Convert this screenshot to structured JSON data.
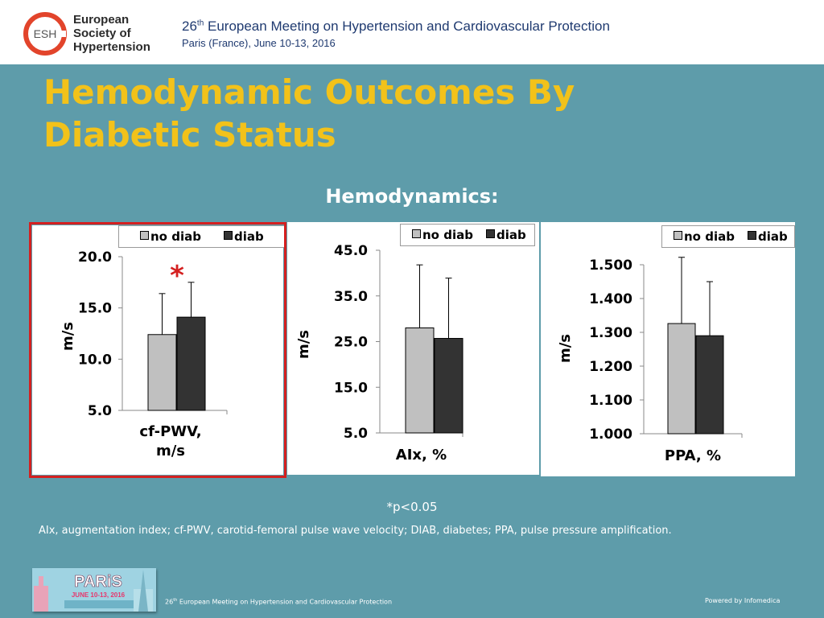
{
  "header": {
    "logo_abbr": "ESH",
    "logo_lines": [
      "European",
      "Society of",
      "Hypertension"
    ],
    "conference_ordinal": "26",
    "conference_ordinal_suffix": "th",
    "conference_name": " European Meeting on Hypertension and Cardiovascular Protection",
    "location_date": "Paris (France), June 10-13, 2016"
  },
  "slide": {
    "title_line1": "Hemodynamic Outcomes By",
    "title_line2": "Diabetic Status",
    "subtitle": "Hemodynamics:",
    "footnote": "*p<0.05",
    "abbreviations": "AIx, augmentation index; cf-PWV, carotid-femoral pulse wave velocity; DIAB, diabetes; PPA, pulse pressure amplification."
  },
  "footer": {
    "image_text_main": "PARiS",
    "image_text_date": "JUNE 10-13, 2016",
    "conf_ordinal": "26",
    "conf_suffix": "th",
    "conf_name": " European Meeting on Hypertension and Cardiovascular Protection",
    "powered_by": "Powered by Infomedica"
  },
  "colors": {
    "background": "#5e9caa",
    "title": "#f2c21a",
    "no_diab": "#c0c0c0",
    "diab": "#333333",
    "highlight": "#d42020",
    "significance": "#d42020"
  },
  "chart_data": [
    {
      "type": "bar",
      "title": "",
      "categories": [
        "cf-PWV,\nm/s"
      ],
      "xlabel_lines": [
        "cf-PWV,",
        "m/s"
      ],
      "ylabel": "m/s",
      "ylim": [
        5.0,
        20.0
      ],
      "yticks": [
        "5.0",
        "10.0",
        "15.0",
        "20.0"
      ],
      "series": [
        {
          "name": "no diab",
          "values": [
            12.4
          ],
          "error": [
            4.0
          ]
        },
        {
          "name": "diab",
          "values": [
            14.1
          ],
          "error": [
            3.4
          ]
        }
      ],
      "annotation": "*",
      "highlighted": true,
      "legend": [
        "no diab",
        "diab"
      ],
      "legend_position": "top"
    },
    {
      "type": "bar",
      "title": "",
      "categories": [
        "AIx, %"
      ],
      "xlabel_lines": [
        "AIx, %"
      ],
      "ylabel": "m/s",
      "ylim": [
        5.0,
        45.0
      ],
      "yticks": [
        "5.0",
        "15.0",
        "25.0",
        "35.0",
        "45.0"
      ],
      "series": [
        {
          "name": "no diab",
          "values": [
            28.0
          ],
          "error": [
            13.8
          ]
        },
        {
          "name": "diab",
          "values": [
            25.7
          ],
          "error": [
            13.2
          ]
        }
      ],
      "annotation": "",
      "highlighted": false,
      "legend": [
        "no diab",
        "diab"
      ],
      "legend_position": "top-right"
    },
    {
      "type": "bar",
      "title": "",
      "categories": [
        "PPA, %"
      ],
      "xlabel_lines": [
        "PPA, %"
      ],
      "ylabel": "m/s",
      "ylim": [
        1.0,
        1.5
      ],
      "yticks": [
        "1.000",
        "1.100",
        "1.200",
        "1.300",
        "1.400",
        "1.500"
      ],
      "series": [
        {
          "name": "no diab",
          "values": [
            1.326
          ],
          "error": [
            0.196
          ]
        },
        {
          "name": "diab",
          "values": [
            1.29
          ],
          "error": [
            0.16
          ]
        }
      ],
      "annotation": "",
      "highlighted": false,
      "legend": [
        "no diab",
        "diab"
      ],
      "legend_position": "top-right"
    }
  ]
}
